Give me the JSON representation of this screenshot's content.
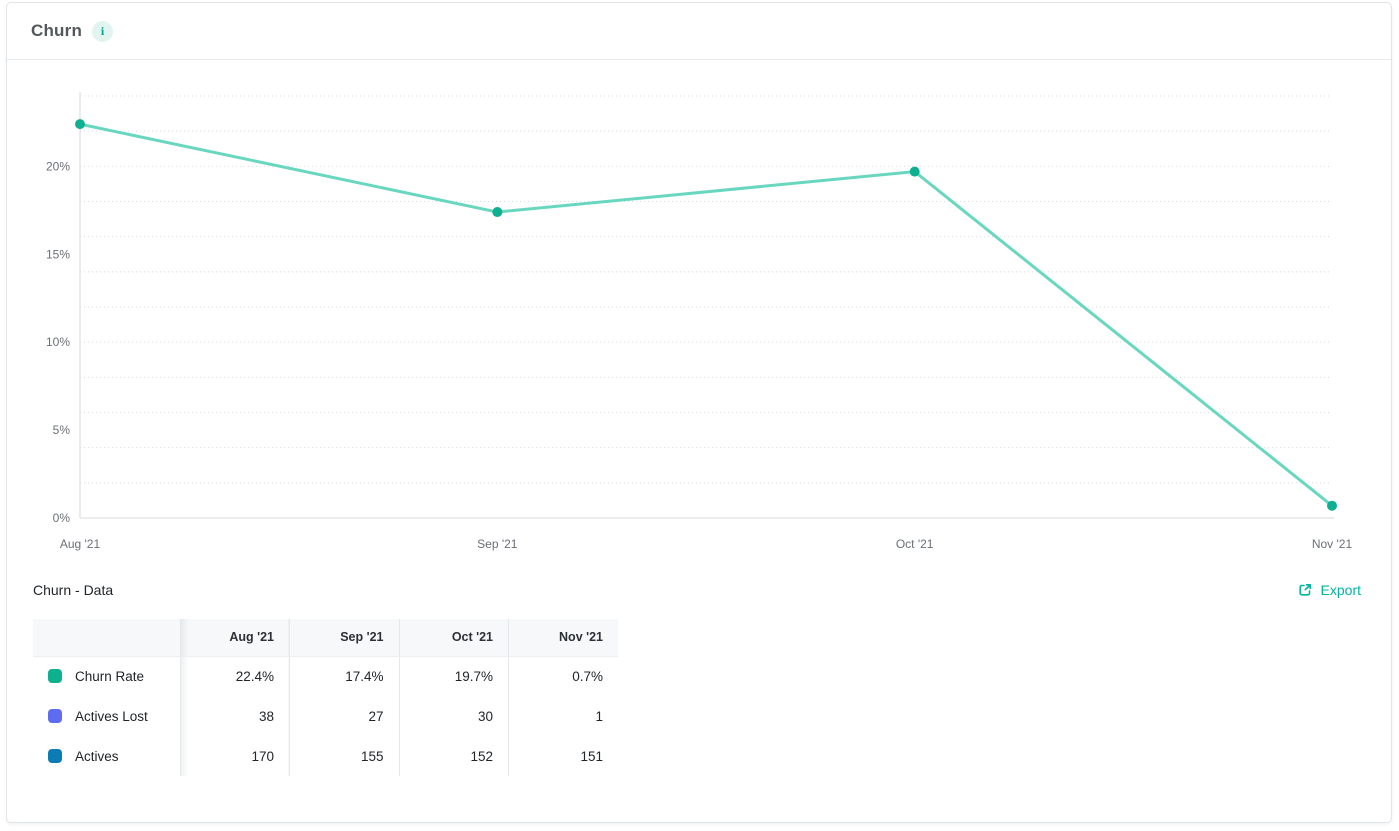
{
  "card": {
    "title": "Churn",
    "info_icon": "i"
  },
  "chart_data": {
    "type": "line",
    "title": "Churn",
    "x": [
      "Aug '21",
      "Sep '21",
      "Oct '21",
      "Nov '21"
    ],
    "series": [
      {
        "name": "Churn Rate",
        "values": [
          22.4,
          17.4,
          19.7,
          0.7
        ],
        "unit": "%"
      }
    ],
    "ylim": [
      0,
      24
    ],
    "grid_step": 2,
    "y_ticks": [
      {
        "value": 0,
        "label": "0%"
      },
      {
        "value": 5,
        "label": "5%"
      },
      {
        "value": 10,
        "label": "10%"
      },
      {
        "value": 15,
        "label": "15%"
      },
      {
        "value": 20,
        "label": "20%"
      }
    ],
    "grid": "dotted-horizontal",
    "legend_position": "none",
    "colors": {
      "line": "#69d7c0",
      "point": "#0fb091",
      "grid": "#d8dbde",
      "axis": "#d6d9dd"
    }
  },
  "data_section": {
    "title": "Churn - Data",
    "export_label": "Export"
  },
  "table": {
    "columns": [
      "Aug '21",
      "Sep '21",
      "Oct '21",
      "Nov '21"
    ],
    "rows": [
      {
        "label": "Churn Rate",
        "swatch_color": "#0db18e",
        "values": [
          "22.4%",
          "17.4%",
          "19.7%",
          "0.7%"
        ]
      },
      {
        "label": "Actives Lost",
        "swatch_color": "#5e6cf2",
        "values": [
          "38",
          "27",
          "30",
          "1"
        ]
      },
      {
        "label": "Actives",
        "swatch_color": "#0c7cb5",
        "values": [
          "170",
          "155",
          "152",
          "151"
        ]
      }
    ]
  },
  "colors": {
    "accent_teal": "#00b4a0",
    "card_border": "#e1e4e8",
    "table_header_bg": "#f7f8f9"
  }
}
